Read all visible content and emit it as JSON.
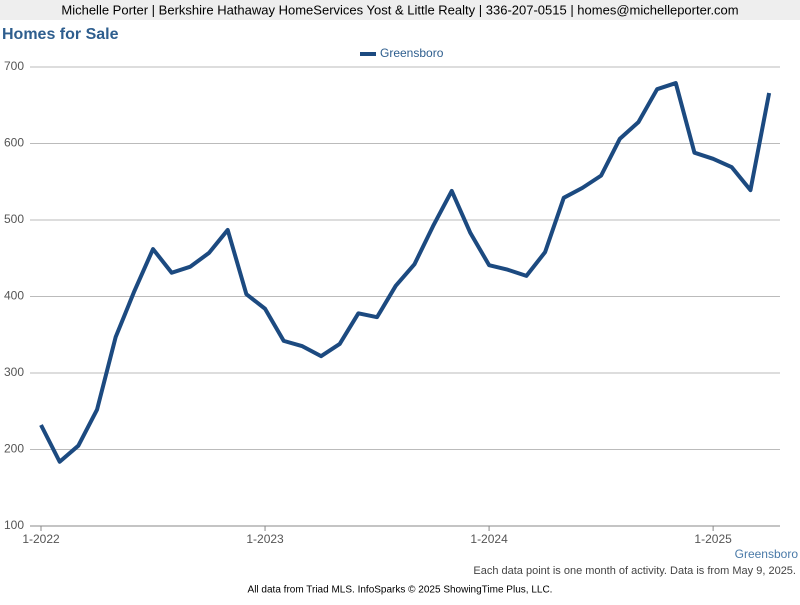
{
  "header": "Michelle Porter | Berkshire Hathaway HomeServices Yost & Little Realty | 336-207-0515 | homes@michelleporter.com",
  "chart_data": {
    "type": "line",
    "title": "Homes for Sale",
    "categories": [
      "1-2022",
      null,
      null,
      null,
      null,
      null,
      null,
      null,
      null,
      null,
      null,
      null,
      "1-2023",
      null,
      null,
      null,
      null,
      null,
      null,
      null,
      null,
      null,
      null,
      null,
      "1-2024",
      null,
      null,
      null,
      null,
      null,
      null,
      null,
      null,
      null,
      null,
      null,
      "1-2025",
      null,
      null,
      null
    ],
    "series": [
      {
        "name": "Greensboro",
        "color": "#1c4a80",
        "values": [
          232,
          184,
          205,
          252,
          347,
          407,
          462,
          431,
          439,
          457,
          487,
          403,
          384,
          342,
          335,
          322,
          338,
          378,
          373,
          414,
          442,
          492,
          538,
          483,
          441,
          435,
          427,
          458,
          529,
          542,
          558,
          606,
          628,
          671,
          679,
          588,
          580,
          569,
          539,
          666
        ]
      }
    ],
    "ylim": [
      100,
      700
    ],
    "yticks": [
      100,
      200,
      300,
      400,
      500,
      600,
      700
    ],
    "grid": true,
    "footnote": "Each data point is one month of activity. Data is from May 9, 2025.",
    "source": "All data from Triad MLS. InfoSparks © 2025 ShowingTime Plus, LLC."
  }
}
